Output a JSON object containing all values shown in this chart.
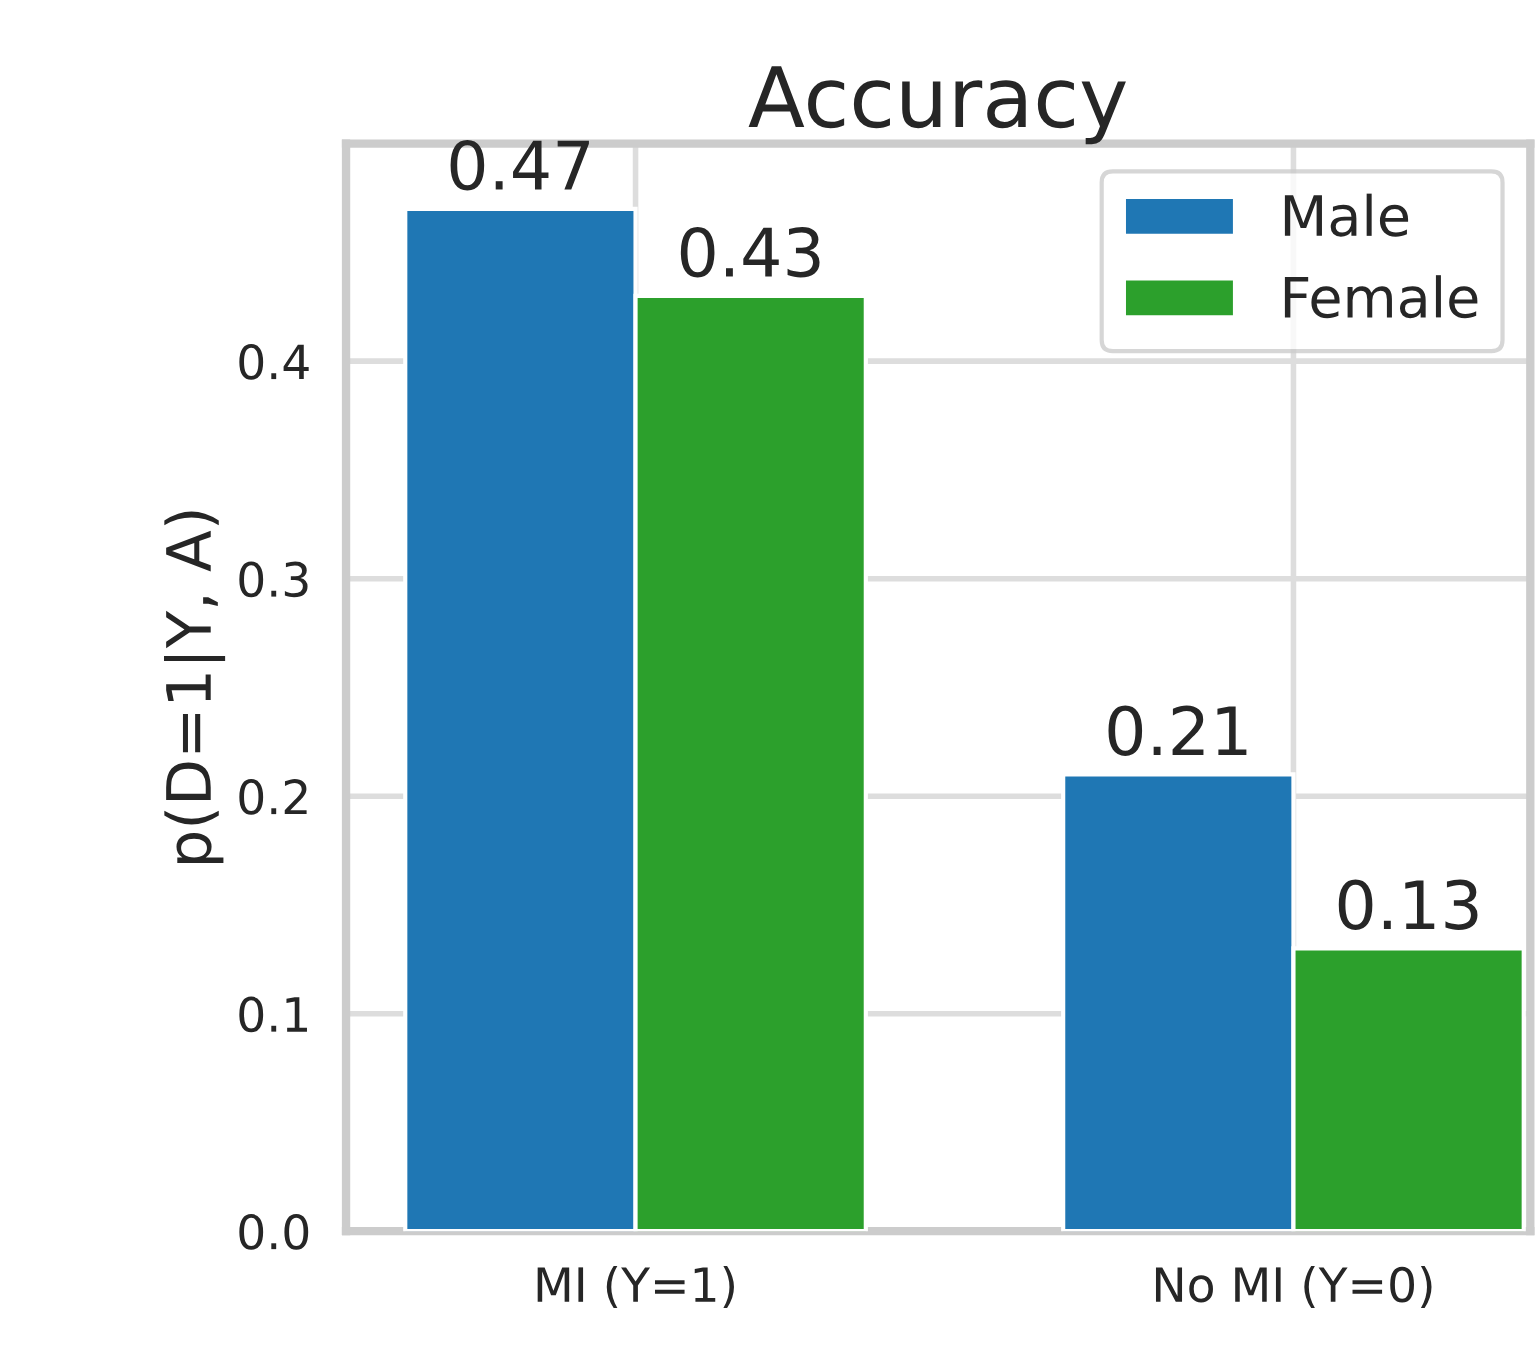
{
  "chart_data": {
    "type": "bar",
    "title": "Accuracy",
    "ylabel": "p(D=1|Y, A)",
    "categories": [
      "MI (Y=1)",
      "No MI (Y=0)"
    ],
    "series": [
      {
        "name": "Male",
        "color": "#1f77b4",
        "values": [
          0.47,
          0.21
        ]
      },
      {
        "name": "Female",
        "color": "#2ca02c",
        "values": [
          0.43,
          0.13
        ]
      }
    ],
    "ylim": [
      0,
      0.5
    ],
    "yticks": [
      {
        "value": 0,
        "label": "0.0"
      },
      0.1,
      0.2,
      0.3,
      0.4
    ],
    "grid": true,
    "legend": "top right",
    "data_labels": true
  }
}
